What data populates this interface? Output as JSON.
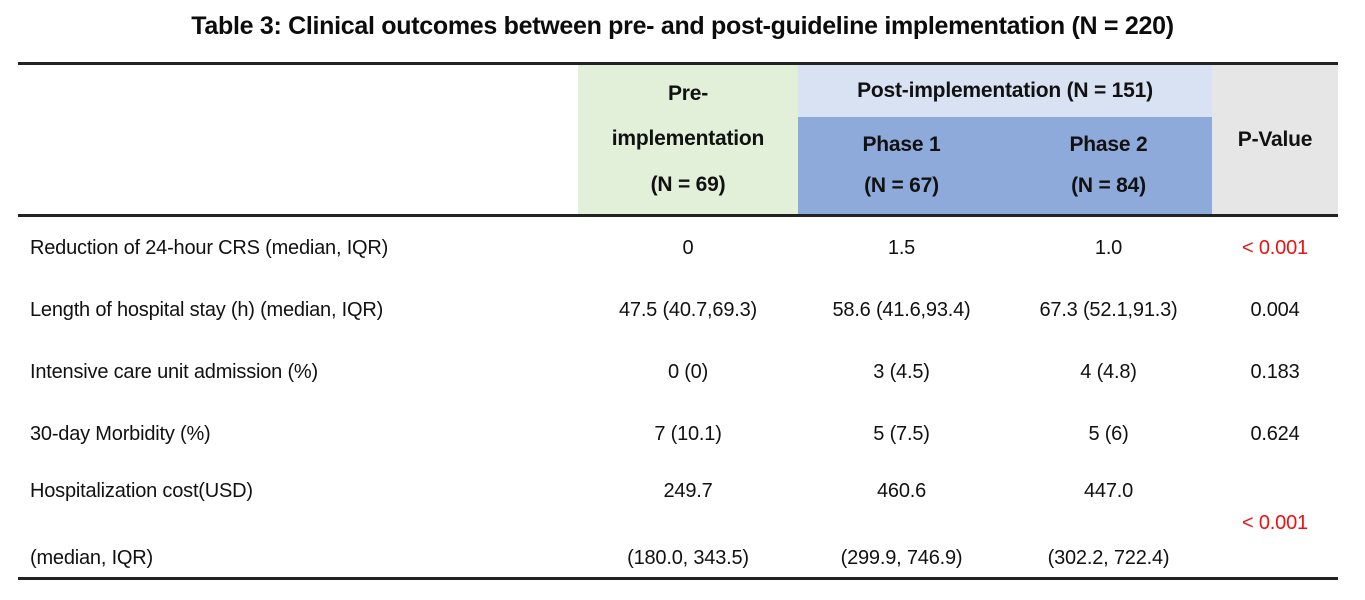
{
  "title": "Table 3: Clinical outcomes between pre- and post-guideline implementation (N = 220)",
  "colors": {
    "pre_bg": "#e2efd9",
    "post_bg": "#d9e2f3",
    "phase_bg": "#8eaadb",
    "pvalue_bg": "#e7e6e6",
    "highlight_red": "#ee1111"
  },
  "table": {
    "header": {
      "pre": {
        "lines": [
          "Pre-",
          "implementation",
          "(N = 69)"
        ]
      },
      "post": {
        "label": "Post-implementation (N = 151)",
        "phases": [
          {
            "lines": [
              "Phase 1",
              "(N = 67)"
            ]
          },
          {
            "lines": [
              "Phase 2",
              "(N = 84)"
            ]
          }
        ]
      },
      "pvalue": "P-Value"
    },
    "rows": [
      {
        "label": "Reduction of 24-hour CRS (median, IQR)",
        "pre": "0",
        "phase1": "1.5",
        "phase2": "1.0",
        "p": "< 0.001",
        "p_red": true
      },
      {
        "label": "Length of hospital stay (h) (median, IQR)",
        "pre": "47.5 (40.7,69.3)",
        "phase1": "58.6 (41.6,93.4)",
        "phase2": "67.3 (52.1,91.3)",
        "p": "0.004",
        "p_red": false
      },
      {
        "label": "Intensive care unit admission (%)",
        "pre": "0 (0)",
        "phase1": "3 (4.5)",
        "phase2": "4 (4.8)",
        "p": "0.183",
        "p_red": false
      },
      {
        "label": "30-day Morbidity (%)",
        "pre": "7 (10.1)",
        "phase1": "5 (7.5)",
        "phase2": "5 (6)",
        "p": "0.624",
        "p_red": false
      },
      {
        "two_line": true,
        "label": [
          "Hospitalization cost(USD)",
          "(median, IQR)"
        ],
        "pre": [
          "249.7",
          "(180.0, 343.5)"
        ],
        "phase1": [
          "460.6",
          "(299.9, 746.9)"
        ],
        "phase2": [
          "447.0",
          "(302.2, 722.4)"
        ],
        "p": "< 0.001",
        "p_red": true
      }
    ]
  }
}
